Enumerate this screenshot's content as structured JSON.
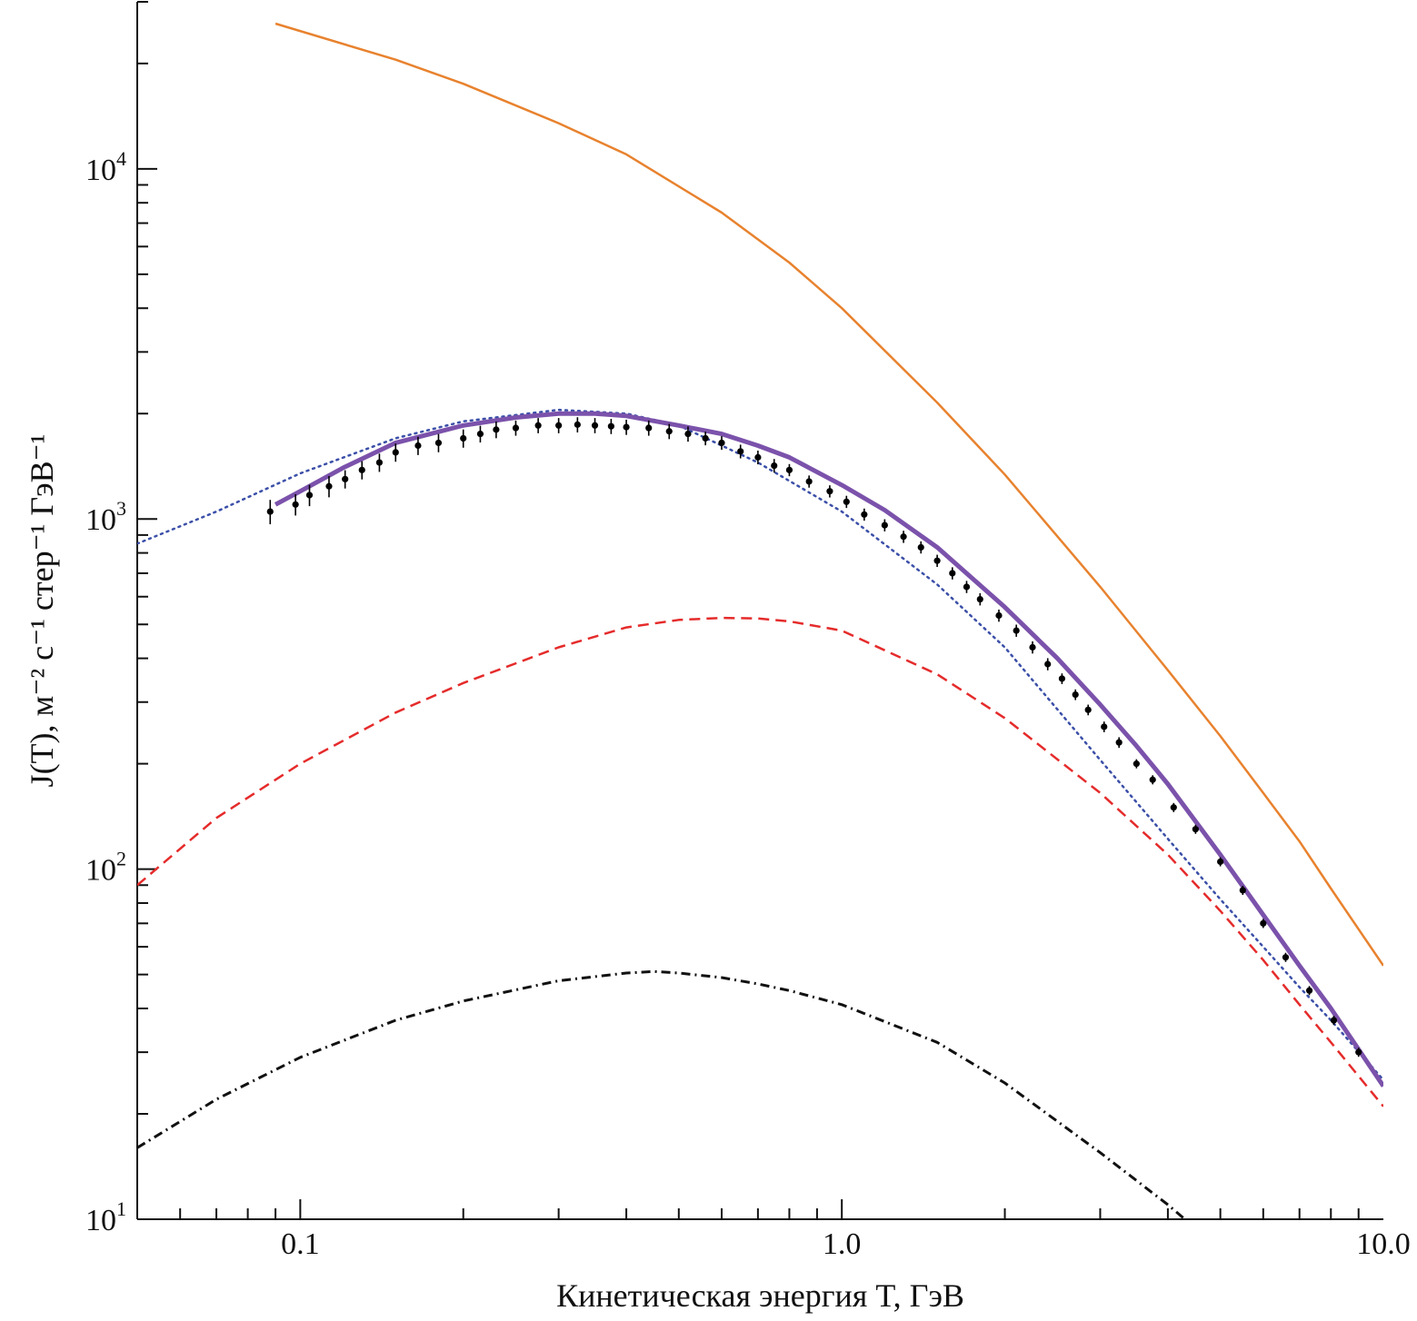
{
  "chart_data": {
    "type": "line",
    "xscale": "log",
    "yscale": "log",
    "xlim": [
      0.05,
      10.0
    ],
    "ylim": [
      10,
      30000
    ],
    "xlabel": "Кинетическая энергия T, ГэВ",
    "ylabel": "J(T), м⁻² с⁻¹ стер⁻¹ ГэВ⁻¹",
    "x_ticks": [
      {
        "value": 0.1,
        "label": "0.1"
      },
      {
        "value": 1.0,
        "label": "1.0"
      },
      {
        "value": 10.0,
        "label": "10.0"
      }
    ],
    "y_ticks": [
      {
        "value": 10,
        "base": "10",
        "exp": "1"
      },
      {
        "value": 100,
        "base": "10",
        "exp": "2"
      },
      {
        "value": 1000,
        "base": "10",
        "exp": "3"
      },
      {
        "value": 10000,
        "base": "10",
        "exp": "4"
      }
    ],
    "grid": false,
    "series": [
      {
        "style": "solid",
        "color": "#e8822e",
        "width": 2.5,
        "x": [
          0.09,
          0.15,
          0.2,
          0.3,
          0.4,
          0.6,
          0.8,
          1.0,
          1.5,
          2.0,
          3.0,
          4.0,
          5.0,
          6.0,
          7.0,
          8.0,
          10.0
        ],
        "y": [
          26000,
          20500,
          17500,
          13500,
          11000,
          7500,
          5400,
          4000,
          2150,
          1340,
          640,
          370,
          240,
          165,
          120,
          88,
          53
        ]
      },
      {
        "style": "dotted",
        "color": "#3b4fa8",
        "width": 2.5,
        "x": [
          0.05,
          0.07,
          0.1,
          0.15,
          0.2,
          0.3,
          0.4,
          0.5,
          0.7,
          1.0,
          1.5,
          2.0,
          3.0,
          4.0,
          5.0,
          6.0,
          7.0,
          8.0,
          10.0
        ],
        "y": [
          850,
          1050,
          1350,
          1700,
          1900,
          2050,
          2000,
          1850,
          1450,
          1050,
          650,
          430,
          205,
          122,
          82,
          60,
          46,
          37,
          25
        ]
      },
      {
        "style": "solid",
        "color": "#7b52ab",
        "width": 5,
        "x": [
          0.09,
          0.1,
          0.12,
          0.15,
          0.2,
          0.25,
          0.3,
          0.35,
          0.4,
          0.5,
          0.6,
          0.7,
          0.8,
          1.0,
          1.2,
          1.5,
          2.0,
          2.5,
          3.0,
          3.5,
          4.0,
          5.0,
          6.0,
          7.0,
          8.0,
          10.0
        ],
        "y": [
          1100,
          1200,
          1400,
          1650,
          1850,
          1950,
          2000,
          2000,
          1970,
          1850,
          1750,
          1620,
          1500,
          1250,
          1060,
          830,
          560,
          400,
          295,
          225,
          175,
          110,
          74,
          53,
          40,
          24
        ]
      },
      {
        "style": "dashed",
        "color": "#e52b2b",
        "width": 2.5,
        "x": [
          0.05,
          0.07,
          0.1,
          0.15,
          0.2,
          0.3,
          0.4,
          0.5,
          0.6,
          0.7,
          0.8,
          1.0,
          1.5,
          2.0,
          3.0,
          4.0,
          5.0,
          6.0,
          7.0,
          8.0,
          10.0
        ],
        "y": [
          90,
          140,
          200,
          280,
          340,
          430,
          490,
          515,
          522,
          520,
          510,
          480,
          360,
          270,
          165,
          110,
          76,
          55,
          41,
          32,
          21
        ]
      },
      {
        "style": "dashdot",
        "color": "#111111",
        "width": 3,
        "x": [
          0.05,
          0.07,
          0.1,
          0.15,
          0.2,
          0.3,
          0.4,
          0.45,
          0.5,
          0.6,
          0.7,
          0.8,
          1.0,
          1.5,
          2.0,
          3.0,
          4.0,
          4.3
        ],
        "y": [
          16,
          22,
          29,
          37,
          42,
          48,
          50.5,
          51,
          50.5,
          49,
          47,
          45,
          41,
          32,
          24.5,
          15.5,
          11,
          10
        ]
      }
    ],
    "data_points": {
      "color": "#000000",
      "x": [
        0.088,
        0.098,
        0.104,
        0.113,
        0.121,
        0.13,
        0.14,
        0.15,
        0.165,
        0.18,
        0.2,
        0.215,
        0.23,
        0.25,
        0.275,
        0.3,
        0.325,
        0.35,
        0.375,
        0.4,
        0.44,
        0.48,
        0.52,
        0.56,
        0.6,
        0.65,
        0.7,
        0.75,
        0.8,
        0.87,
        0.95,
        1.02,
        1.1,
        1.2,
        1.3,
        1.4,
        1.5,
        1.6,
        1.7,
        1.8,
        1.95,
        2.1,
        2.25,
        2.4,
        2.55,
        2.7,
        2.85,
        3.05,
        3.25,
        3.5,
        3.75,
        4.1,
        4.5,
        5.0,
        5.5,
        6.0,
        6.6,
        7.3,
        8.1,
        9.0
      ],
      "y": [
        1050,
        1100,
        1170,
        1240,
        1300,
        1380,
        1450,
        1550,
        1620,
        1650,
        1700,
        1750,
        1800,
        1820,
        1850,
        1850,
        1860,
        1850,
        1840,
        1830,
        1820,
        1780,
        1750,
        1700,
        1650,
        1560,
        1500,
        1420,
        1380,
        1280,
        1200,
        1120,
        1030,
        960,
        890,
        830,
        760,
        700,
        640,
        590,
        530,
        480,
        430,
        385,
        350,
        315,
        285,
        255,
        230,
        200,
        180,
        150,
        130,
        105,
        87,
        70,
        56,
        45,
        37,
        30
      ],
      "err": [
        0.08,
        0.07,
        0.07,
        0.07,
        0.06,
        0.06,
        0.06,
        0.06,
        0.06,
        0.06,
        0.06,
        0.055,
        0.055,
        0.05,
        0.05,
        0.05,
        0.05,
        0.05,
        0.05,
        0.05,
        0.05,
        0.05,
        0.05,
        0.045,
        0.045,
        0.045,
        0.045,
        0.045,
        0.04,
        0.04,
        0.04,
        0.04,
        0.04,
        0.04,
        0.04,
        0.04,
        0.04,
        0.04,
        0.04,
        0.04,
        0.04,
        0.04,
        0.04,
        0.04,
        0.035,
        0.035,
        0.035,
        0.035,
        0.035,
        0.03,
        0.03,
        0.03,
        0.03,
        0.03,
        0.03,
        0.03,
        0.03,
        0.03,
        0.03,
        0.03
      ]
    }
  }
}
